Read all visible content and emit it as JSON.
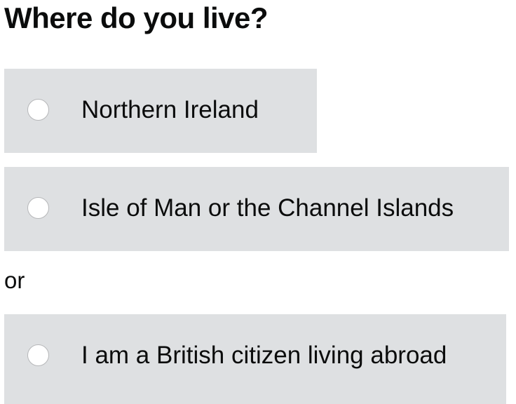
{
  "question": {
    "title": "Where do you live?"
  },
  "options": [
    {
      "label": "Northern Ireland",
      "selected": false
    },
    {
      "label": "Isle of Man or the Channel Islands",
      "selected": false
    }
  ],
  "divider_text": "or",
  "extra_option": {
    "label": "I am a British citizen living abroad",
    "selected": false
  },
  "colors": {
    "option_background": "#dee0e2",
    "text": "#0b0c0c",
    "radio_fill": "#ffffff",
    "radio_border": "#b6b7b9"
  }
}
